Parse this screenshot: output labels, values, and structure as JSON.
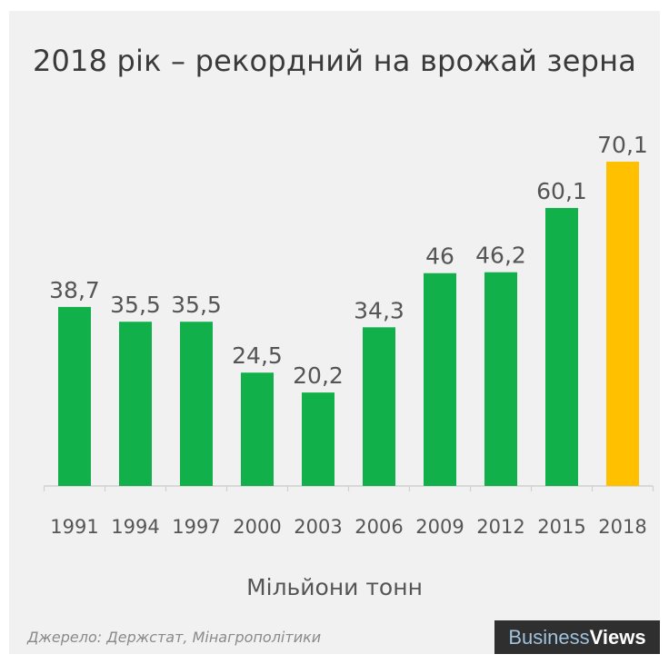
{
  "colors": {
    "background": "#f1f1f1",
    "bar": "#11b04b",
    "highlight": "#ffc000",
    "baseline": "#d0d0d0",
    "text": "#555555"
  },
  "source": "Джерело: Держстат, Мінагрополітики",
  "brand": {
    "part1": "Business",
    "part2": "Views"
  },
  "chart_data": {
    "type": "bar",
    "title": "2018 рік – рекордний на врожай зерна",
    "xlabel": "Мільйони тонн",
    "ylabel": "",
    "categories": [
      "1991",
      "1994",
      "1997",
      "2000",
      "2003",
      "2006",
      "2009",
      "2012",
      "2015",
      "2018"
    ],
    "values": [
      38.7,
      35.5,
      35.5,
      24.5,
      20.2,
      34.3,
      46,
      46.2,
      60.1,
      70.1
    ],
    "value_labels": [
      "38,7",
      "35,5",
      "35,5",
      "24,5",
      "20,2",
      "34,3",
      "46",
      "46,2",
      "60,1",
      "70,1"
    ],
    "highlight_index": 9,
    "ylim": [
      0,
      70.1
    ],
    "grid": false,
    "legend": "none"
  }
}
